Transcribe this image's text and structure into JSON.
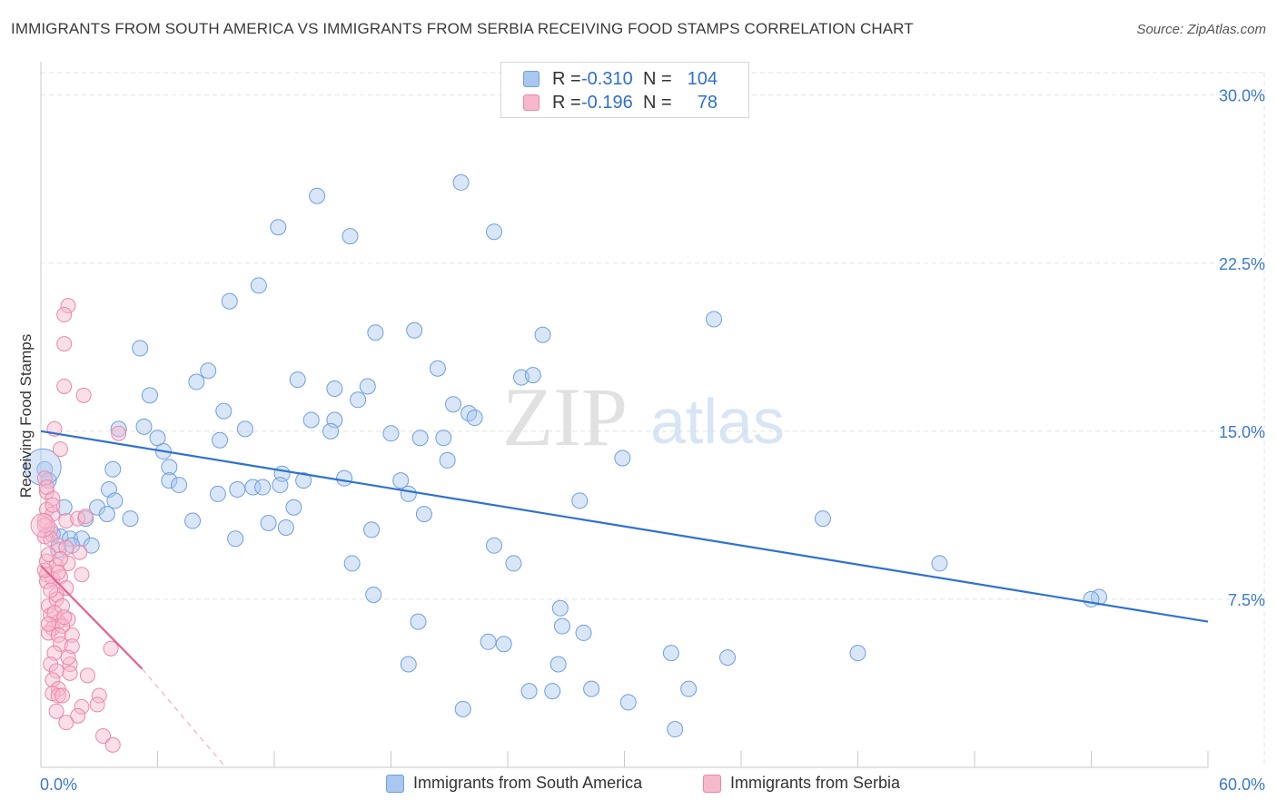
{
  "title": "IMMIGRANTS FROM SOUTH AMERICA VS IMMIGRANTS FROM SERBIA RECEIVING FOOD STAMPS CORRELATION CHART",
  "source": "Source: ZipAtlas.com",
  "watermark": {
    "zip": "ZIP",
    "atlas": "atlas"
  },
  "legend_stats": [
    {
      "r_label": "R =",
      "r_value": "-0.310",
      "n_label": "N =",
      "n_value": "104"
    },
    {
      "r_label": "R =",
      "r_value": "-0.196",
      "n_label": "N =",
      "n_value": "78"
    }
  ],
  "colors": {
    "blue_fill": "#a8c8f0",
    "blue_stroke": "#6f9fe0",
    "blue_line": "#2e72d2",
    "pink_fill": "#f6b8cb",
    "pink_stroke": "#ec86a8",
    "pink_line": "#e8628f",
    "axis_label": "#3b78d1",
    "grid": "#e3e3e3"
  },
  "chart_data": {
    "type": "scatter",
    "title": "IMMIGRANTS FROM SOUTH AMERICA VS IMMIGRANTS FROM SERBIA RECEIVING FOOD STAMPS CORRELATION CHART",
    "xlabel": "",
    "ylabel": "Receiving Food Stamps",
    "xlim": [
      0,
      60
    ],
    "ylim": [
      0,
      31
    ],
    "x_tick_labels": [
      "0.0%",
      "60.0%"
    ],
    "y_ticks": [
      7.5,
      15.0,
      22.5,
      30.0
    ],
    "y_tick_labels": [
      "7.5%",
      "15.0%",
      "22.5%",
      "30.0%"
    ],
    "grid": true,
    "legend_position": "bottom",
    "series": [
      {
        "name": "Immigrants from South America",
        "color": "blue",
        "r": -0.31,
        "n": 104,
        "trend": {
          "x": [
            0.0,
            60.0
          ],
          "y": [
            15.0,
            6.5
          ]
        },
        "points": [
          [
            21.6,
            26.1
          ],
          [
            14.2,
            25.5
          ],
          [
            12.2,
            24.1
          ],
          [
            15.9,
            23.7
          ],
          [
            23.3,
            23.9
          ],
          [
            11.2,
            21.5
          ],
          [
            9.7,
            20.8
          ],
          [
            34.6,
            20.0
          ],
          [
            17.2,
            19.4
          ],
          [
            19.2,
            19.5
          ],
          [
            25.8,
            19.3
          ],
          [
            5.1,
            18.7
          ],
          [
            20.4,
            17.8
          ],
          [
            8.6,
            17.7
          ],
          [
            8.0,
            17.2
          ],
          [
            13.2,
            17.3
          ],
          [
            24.7,
            17.4
          ],
          [
            25.3,
            17.5
          ],
          [
            15.1,
            16.9
          ],
          [
            16.8,
            17.0
          ],
          [
            5.6,
            16.6
          ],
          [
            16.3,
            16.4
          ],
          [
            21.2,
            16.2
          ],
          [
            9.4,
            15.9
          ],
          [
            22.0,
            15.8
          ],
          [
            22.3,
            15.6
          ],
          [
            13.9,
            15.5
          ],
          [
            15.1,
            15.5
          ],
          [
            4.0,
            15.1
          ],
          [
            5.3,
            15.2
          ],
          [
            10.5,
            15.1
          ],
          [
            14.9,
            15.0
          ],
          [
            18.0,
            14.9
          ],
          [
            19.5,
            14.7
          ],
          [
            20.7,
            14.7
          ],
          [
            6.0,
            14.7
          ],
          [
            9.2,
            14.6
          ],
          [
            6.3,
            14.1
          ],
          [
            29.9,
            13.8
          ],
          [
            3.7,
            13.3
          ],
          [
            6.6,
            13.4
          ],
          [
            20.9,
            13.7
          ],
          [
            12.4,
            13.1
          ],
          [
            13.5,
            12.8
          ],
          [
            15.6,
            12.9
          ],
          [
            6.6,
            12.8
          ],
          [
            18.5,
            12.8
          ],
          [
            7.1,
            12.6
          ],
          [
            3.5,
            12.4
          ],
          [
            10.9,
            12.5
          ],
          [
            9.1,
            12.2
          ],
          [
            10.1,
            12.4
          ],
          [
            11.4,
            12.5
          ],
          [
            12.3,
            12.6
          ],
          [
            18.9,
            12.2
          ],
          [
            3.8,
            11.9
          ],
          [
            27.7,
            11.9
          ],
          [
            13.0,
            11.6
          ],
          [
            2.9,
            11.6
          ],
          [
            3.4,
            11.3
          ],
          [
            19.7,
            11.3
          ],
          [
            40.2,
            11.1
          ],
          [
            2.3,
            11.1
          ],
          [
            4.6,
            11.1
          ],
          [
            7.8,
            11.0
          ],
          [
            11.7,
            10.9
          ],
          [
            12.6,
            10.7
          ],
          [
            17.0,
            10.6
          ],
          [
            1.0,
            10.3
          ],
          [
            1.5,
            10.2
          ],
          [
            2.1,
            10.2
          ],
          [
            10.0,
            10.2
          ],
          [
            2.6,
            9.9
          ],
          [
            23.3,
            9.9
          ],
          [
            46.2,
            9.1
          ],
          [
            16.0,
            9.1
          ],
          [
            24.3,
            9.1
          ],
          [
            17.1,
            7.7
          ],
          [
            54.4,
            7.6
          ],
          [
            54.0,
            7.5
          ],
          [
            26.7,
            7.1
          ],
          [
            19.4,
            6.5
          ],
          [
            26.8,
            6.3
          ],
          [
            27.9,
            6.0
          ],
          [
            23.0,
            5.6
          ],
          [
            23.8,
            5.5
          ],
          [
            32.4,
            5.1
          ],
          [
            42.0,
            5.1
          ],
          [
            35.3,
            4.9
          ],
          [
            18.9,
            4.6
          ],
          [
            26.6,
            4.6
          ],
          [
            28.3,
            3.5
          ],
          [
            33.3,
            3.5
          ],
          [
            25.1,
            3.4
          ],
          [
            26.3,
            3.4
          ],
          [
            30.2,
            2.9
          ],
          [
            21.7,
            2.6
          ],
          [
            32.6,
            1.7
          ],
          [
            0.2,
            13.3
          ],
          [
            0.4,
            12.8
          ],
          [
            1.2,
            11.6
          ],
          [
            0.6,
            10.4
          ],
          [
            0.9,
            9.7
          ],
          [
            1.6,
            9.9
          ]
        ]
      },
      {
        "name": "Immigrants from Serbia",
        "color": "pink",
        "r": -0.196,
        "n": 78,
        "trend": {
          "x": [
            0.0,
            5.2
          ],
          "y": [
            9.0,
            4.4
          ]
        },
        "trend_extension": {
          "x": [
            5.2,
            9.5
          ],
          "y": [
            4.4,
            0.0
          ]
        },
        "points": [
          [
            1.4,
            20.6
          ],
          [
            1.2,
            20.2
          ],
          [
            1.2,
            18.9
          ],
          [
            1.2,
            17.0
          ],
          [
            2.2,
            16.6
          ],
          [
            4.0,
            14.9
          ],
          [
            0.7,
            15.1
          ],
          [
            1.0,
            14.2
          ],
          [
            0.2,
            12.9
          ],
          [
            0.3,
            12.3
          ],
          [
            0.6,
            12.0
          ],
          [
            0.3,
            11.5
          ],
          [
            0.6,
            11.3
          ],
          [
            1.3,
            11.0
          ],
          [
            1.9,
            11.1
          ],
          [
            2.3,
            11.2
          ],
          [
            0.5,
            10.6
          ],
          [
            0.2,
            10.3
          ],
          [
            0.5,
            10.2
          ],
          [
            0.9,
            9.9
          ],
          [
            1.3,
            9.8
          ],
          [
            2.0,
            9.6
          ],
          [
            0.3,
            9.2
          ],
          [
            0.8,
            9.0
          ],
          [
            1.4,
            9.1
          ],
          [
            0.3,
            8.6
          ],
          [
            0.6,
            8.4
          ],
          [
            1.0,
            8.5
          ],
          [
            2.1,
            8.6
          ],
          [
            0.3,
            8.3
          ],
          [
            1.3,
            8.0
          ],
          [
            0.8,
            7.7
          ],
          [
            0.4,
            7.2
          ],
          [
            0.8,
            7.5
          ],
          [
            1.1,
            7.2
          ],
          [
            0.5,
            6.8
          ],
          [
            1.4,
            6.6
          ],
          [
            0.9,
            6.5
          ],
          [
            0.6,
            6.2
          ],
          [
            1.1,
            6.3
          ],
          [
            0.4,
            6.0
          ],
          [
            0.9,
            5.9
          ],
          [
            1.6,
            5.9
          ],
          [
            1.0,
            5.5
          ],
          [
            1.6,
            5.4
          ],
          [
            3.6,
            5.3
          ],
          [
            0.7,
            5.1
          ],
          [
            0.5,
            4.6
          ],
          [
            1.5,
            4.6
          ],
          [
            0.8,
            4.3
          ],
          [
            1.5,
            4.2
          ],
          [
            2.4,
            4.1
          ],
          [
            0.6,
            3.9
          ],
          [
            0.9,
            3.5
          ],
          [
            0.6,
            3.3
          ],
          [
            0.9,
            3.2
          ],
          [
            1.1,
            3.2
          ],
          [
            3.0,
            3.2
          ],
          [
            2.1,
            2.7
          ],
          [
            2.9,
            2.8
          ],
          [
            0.8,
            2.5
          ],
          [
            1.9,
            2.3
          ],
          [
            1.3,
            2.0
          ],
          [
            3.2,
            1.4
          ],
          [
            3.7,
            1.0
          ],
          [
            0.2,
            11.0
          ],
          [
            0.4,
            9.5
          ],
          [
            0.2,
            8.8
          ],
          [
            0.5,
            7.9
          ],
          [
            0.7,
            6.9
          ],
          [
            1.2,
            6.7
          ],
          [
            0.2,
            10.8
          ],
          [
            0.6,
            11.7
          ],
          [
            0.3,
            12.5
          ],
          [
            1.0,
            9.3
          ],
          [
            0.4,
            6.4
          ],
          [
            1.4,
            4.9
          ],
          [
            0.9,
            8.7
          ]
        ]
      }
    ]
  }
}
